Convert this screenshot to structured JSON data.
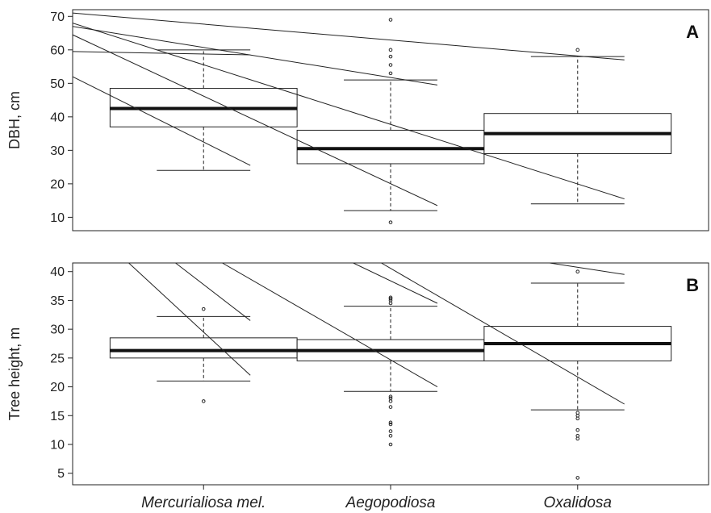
{
  "chart_data": [
    {
      "type": "box",
      "panel_label": "A",
      "ylabel": "DBH, cm",
      "ylim": [
        6,
        72
      ],
      "yticks": [
        10,
        20,
        30,
        40,
        50,
        60,
        70
      ],
      "categories": [
        "Mercurialiosa mel.",
        "Aegopodiosa",
        "Oxalidosa"
      ],
      "boxes": [
        {
          "category": "Mercurialiosa mel.",
          "whisker_low": 24,
          "q1": 37,
          "median": 42.5,
          "q3": 48.5,
          "whisker_high": 60,
          "outliers": []
        },
        {
          "category": "Aegopodiosa",
          "whisker_low": 12,
          "q1": 26,
          "median": 30.5,
          "q3": 36,
          "whisker_high": 51,
          "outliers": [
            8.5,
            53,
            55.5,
            58,
            60,
            69
          ]
        },
        {
          "category": "Oxalidosa",
          "whisker_low": 14,
          "q1": 29,
          "median": 35,
          "q3": 41,
          "whisker_high": 58,
          "outliers": [
            60
          ]
        }
      ],
      "lines": [
        {
          "start": [
            0.3,
            71
          ],
          "end": [
            3.25,
            57
          ]
        },
        {
          "start": [
            0.3,
            68
          ],
          "end": [
            3.25,
            15.5
          ]
        },
        {
          "start": [
            0.3,
            67
          ],
          "end": [
            2.25,
            49.5
          ]
        },
        {
          "start": [
            0.3,
            64.5
          ],
          "end": [
            2.25,
            13.5
          ]
        },
        {
          "start": [
            0.3,
            59.5
          ],
          "end": [
            1.25,
            58.5
          ]
        },
        {
          "start": [
            0.3,
            52
          ],
          "end": [
            1.25,
            25.5
          ]
        }
      ]
    },
    {
      "type": "box",
      "panel_label": "B",
      "ylabel": "Tree height, m",
      "ylim": [
        3,
        41.5
      ],
      "yticks": [
        5,
        10,
        15,
        20,
        25,
        30,
        35,
        40
      ],
      "categories": [
        "Mercurialiosa mel.",
        "Aegopodiosa",
        "Oxalidosa"
      ],
      "boxes": [
        {
          "category": "Mercurialiosa mel.",
          "whisker_low": 21,
          "q1": 25,
          "median": 26.3,
          "q3": 28.5,
          "whisker_high": 32.2,
          "outliers": [
            17.5,
            33.5
          ]
        },
        {
          "category": "Aegopodiosa",
          "whisker_low": 19.2,
          "q1": 24.5,
          "median": 26.3,
          "q3": 28.2,
          "whisker_high": 34,
          "outliers": [
            10,
            11.5,
            12.3,
            13.5,
            13.8,
            16.5,
            17.5,
            18,
            18.3,
            34.5,
            35,
            35.3,
            35.5
          ]
        },
        {
          "category": "Oxalidosa",
          "whisker_low": 16,
          "q1": 24.5,
          "median": 27.5,
          "q3": 30.5,
          "whisker_high": 38,
          "outliers": [
            4.2,
            11,
            11.5,
            12.5,
            14.5,
            15,
            15.5,
            40
          ]
        }
      ],
      "lines": [
        {
          "start": [
            0.6,
            41.5
          ],
          "end": [
            1.25,
            22
          ]
        },
        {
          "start": [
            0.85,
            41.5
          ],
          "end": [
            1.25,
            31.5
          ]
        },
        {
          "start": [
            1.1,
            41.5
          ],
          "end": [
            2.25,
            20
          ]
        },
        {
          "start": [
            1.8,
            41.5
          ],
          "end": [
            2.25,
            34.5
          ]
        },
        {
          "start": [
            1.95,
            41.5
          ],
          "end": [
            3.25,
            17
          ]
        },
        {
          "start": [
            2.85,
            41.5
          ],
          "end": [
            3.25,
            39.5
          ]
        }
      ]
    }
  ]
}
